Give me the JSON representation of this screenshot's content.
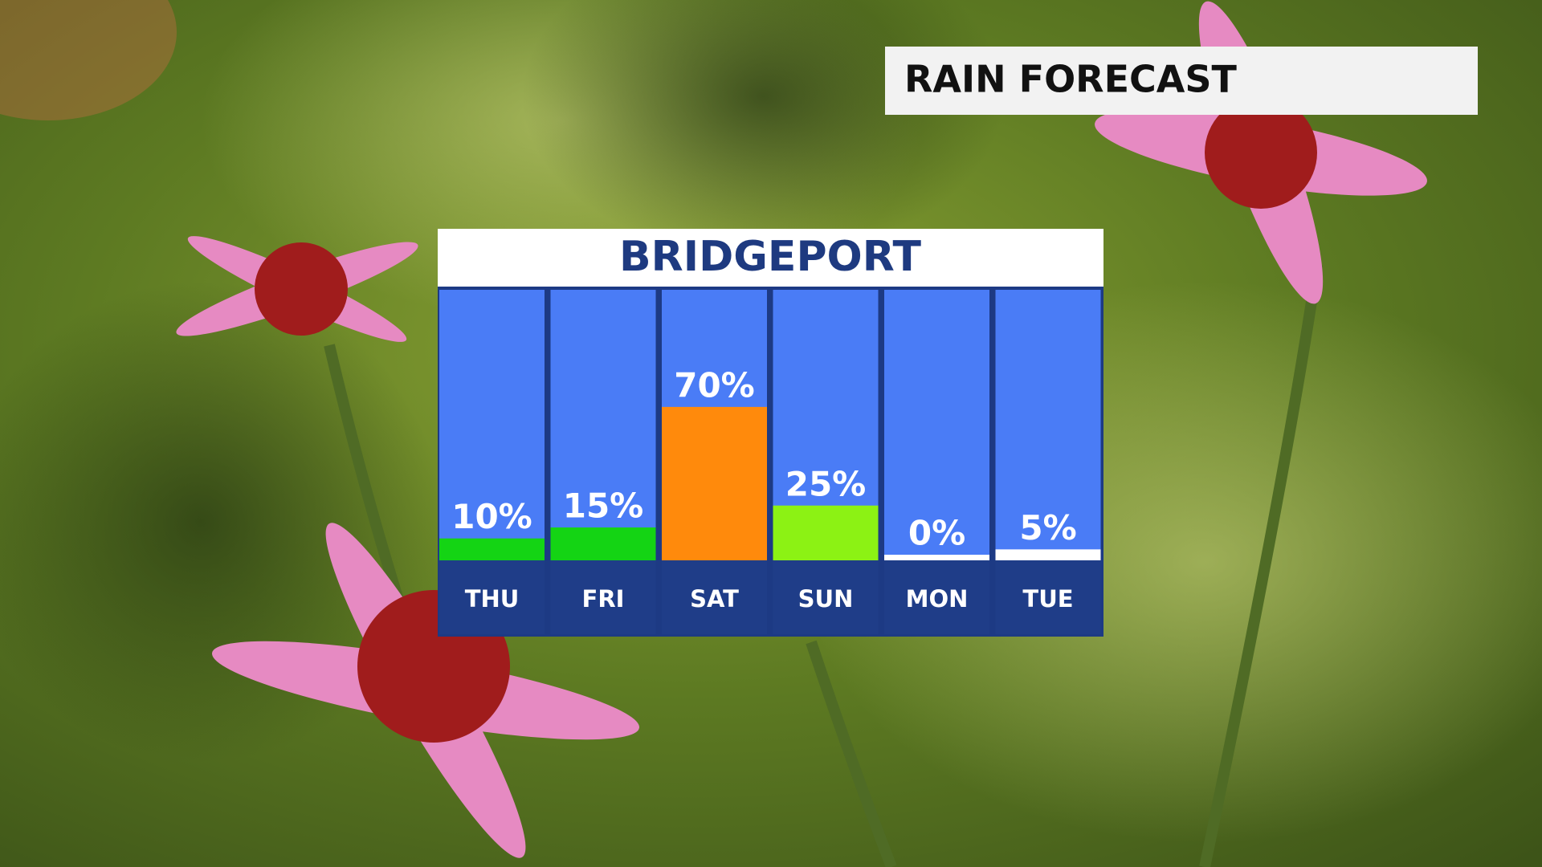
{
  "header": {
    "title": "RAIN FORECAST"
  },
  "chart_data": {
    "type": "bar",
    "title": "BRIDGEPORT",
    "categories": [
      "THU",
      "FRI",
      "SAT",
      "SUN",
      "MON",
      "TUE"
    ],
    "values": [
      10,
      15,
      70,
      25,
      0,
      5
    ],
    "value_labels": [
      "10%",
      "15%",
      "70%",
      "25%",
      "0%",
      "5%"
    ],
    "colors": [
      "#14d414",
      "#14d414",
      "#ff8a0c",
      "#8cf214",
      "#ffffff",
      "#ffffff"
    ]
  }
}
